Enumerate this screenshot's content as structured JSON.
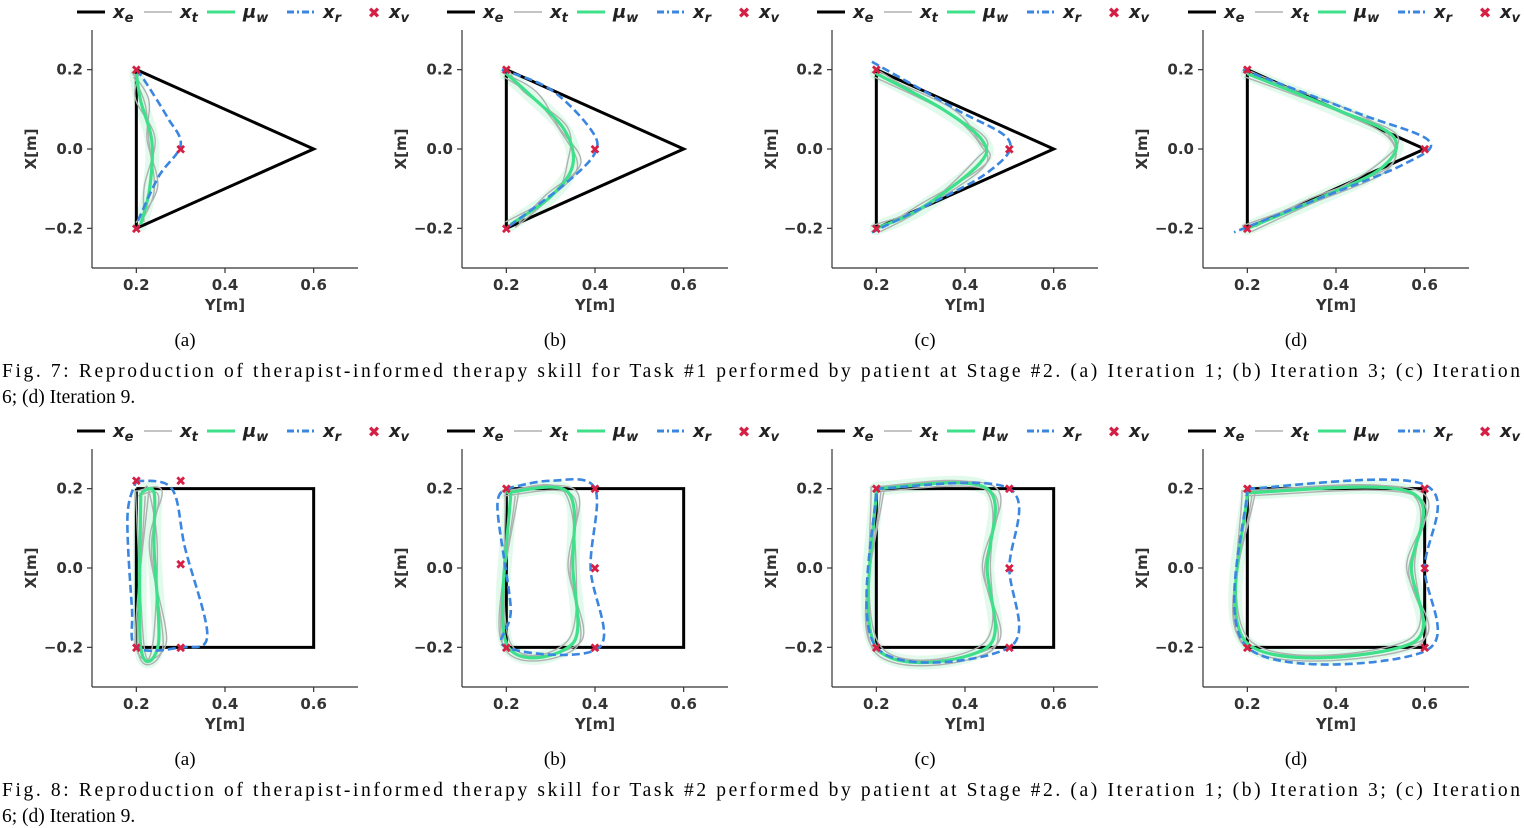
{
  "figures": [
    {
      "id": "fig7",
      "caption": "Fig. 7: Reproduction of therapist-informed therapy skill for Task #1 performed by patient at Stage #2. (a) Iteration 1; (b) Iteration 3; (c) Iteration 6; (d) Iteration 9.",
      "caption_line1": "Fig. 7: Reproduction of therapist-informed therapy skill for Task #1 performed by patient at Stage #2. (a) Iteration 1; (b) Iteration 3; (c) Iteration",
      "caption_line2": "6; (d) Iteration 9."
    },
    {
      "id": "fig8",
      "caption": "Fig. 8: Reproduction of therapist-informed therapy skill for Task #2 performed by patient at Stage #2. (a) Iteration 1; (b) Iteration 3; (c) Iteration 6; (d) Iteration 9.",
      "caption_line1": "Fig. 8: Reproduction of therapist-informed therapy skill for Task #2 performed by patient at Stage #2. (a) Iteration 1; (b) Iteration 3; (c) Iteration",
      "caption_line2": "6; (d) Iteration 9."
    }
  ],
  "legend": [
    {
      "name": "x",
      "sub": "e",
      "style": "solid",
      "color": "#000000"
    },
    {
      "name": "x",
      "sub": "t",
      "style": "thin",
      "color": "#b0b0b0"
    },
    {
      "name": "μ",
      "sub": "w",
      "style": "solid",
      "color": "#3ee08a"
    },
    {
      "name": "x",
      "sub": "r",
      "style": "dashdot",
      "color": "#3a86e0"
    },
    {
      "name": "x",
      "sub": "v",
      "style": "marker",
      "color": "#d61f45"
    }
  ],
  "colors": {
    "x_e": "#000000",
    "x_t": "#b0b0b0",
    "mu_w": "#3ee08a",
    "x_r": "#3a86e0",
    "x_v": "#d61f45",
    "band": "#c9f5dc"
  },
  "axes": {
    "xlabel": "Y[m]",
    "ylabel": "X[m]",
    "xlim": [
      0.1,
      0.7
    ],
    "ylim": [
      -0.3,
      0.3
    ],
    "xticks": [
      0.2,
      0.4,
      0.6
    ],
    "xtick_labels": [
      "0.2",
      "0.4",
      "0.6"
    ],
    "yticks": [
      0.2,
      0.0,
      -0.2
    ],
    "ytick_labels": [
      "0.2",
      "0.0",
      "−0.2"
    ]
  },
  "chart_data": [
    {
      "type": "line",
      "figure": "fig7",
      "label": "(a)",
      "x_e": [
        [
          0.2,
          0.2
        ],
        [
          0.6,
          0.0
        ],
        [
          0.2,
          -0.2
        ],
        [
          0.2,
          0.2
        ]
      ],
      "mu_w": [
        [
          0.2,
          0.19
        ],
        [
          0.21,
          0.12
        ],
        [
          0.235,
          0.02
        ],
        [
          0.23,
          -0.1
        ],
        [
          0.21,
          -0.19
        ]
      ],
      "x_r": [
        [
          0.2,
          0.2
        ],
        [
          0.22,
          0.17
        ],
        [
          0.27,
          0.08
        ],
        [
          0.3,
          0.01
        ],
        [
          0.25,
          -0.07
        ],
        [
          0.2,
          -0.19
        ]
      ],
      "x_v": [
        [
          0.2,
          0.2
        ],
        [
          0.3,
          0.0
        ],
        [
          0.2,
          -0.2
        ]
      ]
    },
    {
      "type": "line",
      "figure": "fig7",
      "label": "(b)",
      "x_e": [
        [
          0.2,
          0.2
        ],
        [
          0.6,
          0.0
        ],
        [
          0.2,
          -0.2
        ],
        [
          0.2,
          0.2
        ]
      ],
      "mu_w": [
        [
          0.2,
          0.19
        ],
        [
          0.25,
          0.14
        ],
        [
          0.33,
          0.05
        ],
        [
          0.35,
          -0.04
        ],
        [
          0.3,
          -0.12
        ],
        [
          0.21,
          -0.19
        ]
      ],
      "x_r": [
        [
          0.19,
          0.2
        ],
        [
          0.3,
          0.15
        ],
        [
          0.39,
          0.05
        ],
        [
          0.4,
          -0.01
        ],
        [
          0.33,
          -0.09
        ],
        [
          0.2,
          -0.2
        ]
      ],
      "x_v": [
        [
          0.2,
          0.2
        ],
        [
          0.4,
          0.0
        ],
        [
          0.2,
          -0.2
        ]
      ]
    },
    {
      "type": "line",
      "figure": "fig7",
      "label": "(c)",
      "x_e": [
        [
          0.2,
          0.2
        ],
        [
          0.6,
          0.0
        ],
        [
          0.2,
          -0.2
        ],
        [
          0.2,
          0.2
        ]
      ],
      "mu_w": [
        [
          0.2,
          0.19
        ],
        [
          0.35,
          0.1
        ],
        [
          0.44,
          0.02
        ],
        [
          0.43,
          -0.04
        ],
        [
          0.3,
          -0.15
        ],
        [
          0.2,
          -0.2
        ]
      ],
      "x_r": [
        [
          0.19,
          0.22
        ],
        [
          0.38,
          0.1
        ],
        [
          0.5,
          0.02
        ],
        [
          0.45,
          -0.06
        ],
        [
          0.3,
          -0.15
        ],
        [
          0.19,
          -0.21
        ]
      ],
      "x_v": [
        [
          0.2,
          0.2
        ],
        [
          0.5,
          0.0
        ],
        [
          0.2,
          -0.2
        ]
      ]
    },
    {
      "type": "line",
      "figure": "fig7",
      "label": "(d)",
      "x_e": [
        [
          0.2,
          0.2
        ],
        [
          0.6,
          0.0
        ],
        [
          0.2,
          -0.2
        ],
        [
          0.2,
          0.2
        ]
      ],
      "mu_w": [
        [
          0.2,
          0.19
        ],
        [
          0.4,
          0.1
        ],
        [
          0.53,
          0.03
        ],
        [
          0.5,
          -0.05
        ],
        [
          0.35,
          -0.13
        ],
        [
          0.2,
          -0.2
        ]
      ],
      "x_r": [
        [
          0.19,
          0.2
        ],
        [
          0.45,
          0.09
        ],
        [
          0.61,
          0.02
        ],
        [
          0.55,
          -0.04
        ],
        [
          0.35,
          -0.13
        ],
        [
          0.17,
          -0.21
        ]
      ],
      "x_v": [
        [
          0.2,
          0.2
        ],
        [
          0.6,
          0.0
        ],
        [
          0.2,
          -0.2
        ]
      ]
    },
    {
      "type": "line",
      "figure": "fig8",
      "label": "(a)",
      "x_e": [
        [
          0.2,
          0.2
        ],
        [
          0.6,
          0.2
        ],
        [
          0.6,
          -0.2
        ],
        [
          0.2,
          -0.2
        ],
        [
          0.2,
          0.2
        ]
      ],
      "mu_w": [
        [
          0.21,
          0.19
        ],
        [
          0.24,
          0.19
        ],
        [
          0.24,
          0.05
        ],
        [
          0.25,
          -0.19
        ],
        [
          0.21,
          -0.2
        ],
        [
          0.21,
          0.19
        ]
      ],
      "x_r": [
        [
          0.2,
          0.22
        ],
        [
          0.28,
          0.2
        ],
        [
          0.31,
          0.05
        ],
        [
          0.36,
          -0.17
        ],
        [
          0.3,
          -0.2
        ],
        [
          0.2,
          -0.2
        ],
        [
          0.19,
          -0.1
        ],
        [
          0.18,
          0.13
        ],
        [
          0.2,
          0.22
        ]
      ],
      "x_v": [
        [
          0.2,
          0.22
        ],
        [
          0.3,
          0.22
        ],
        [
          0.3,
          0.01
        ],
        [
          0.3,
          -0.2
        ],
        [
          0.2,
          -0.2
        ]
      ]
    },
    {
      "type": "line",
      "figure": "fig8",
      "label": "(b)",
      "x_e": [
        [
          0.2,
          0.2
        ],
        [
          0.6,
          0.2
        ],
        [
          0.6,
          -0.2
        ],
        [
          0.2,
          -0.2
        ],
        [
          0.2,
          0.2
        ]
      ],
      "mu_w": [
        [
          0.2,
          0.19
        ],
        [
          0.34,
          0.19
        ],
        [
          0.35,
          0.0
        ],
        [
          0.35,
          -0.19
        ],
        [
          0.2,
          -0.19
        ],
        [
          0.21,
          0.19
        ]
      ],
      "x_r": [
        [
          0.2,
          0.2
        ],
        [
          0.3,
          0.22
        ],
        [
          0.4,
          0.2
        ],
        [
          0.39,
          0.0
        ],
        [
          0.41,
          -0.2
        ],
        [
          0.2,
          -0.2
        ],
        [
          0.21,
          -0.1
        ],
        [
          0.18,
          0.15
        ],
        [
          0.2,
          0.2
        ]
      ],
      "x_v": [
        [
          0.2,
          0.2
        ],
        [
          0.4,
          0.2
        ],
        [
          0.4,
          0.0
        ],
        [
          0.4,
          -0.2
        ],
        [
          0.2,
          -0.2
        ]
      ]
    },
    {
      "type": "line",
      "figure": "fig8",
      "label": "(c)",
      "x_e": [
        [
          0.2,
          0.2
        ],
        [
          0.6,
          0.2
        ],
        [
          0.6,
          -0.2
        ],
        [
          0.2,
          -0.2
        ],
        [
          0.2,
          0.2
        ]
      ],
      "mu_w": [
        [
          0.2,
          0.2
        ],
        [
          0.45,
          0.2
        ],
        [
          0.45,
          0.0
        ],
        [
          0.45,
          -0.2
        ],
        [
          0.2,
          -0.2
        ],
        [
          0.2,
          0.2
        ]
      ],
      "x_r": [
        [
          0.2,
          0.2
        ],
        [
          0.5,
          0.2
        ],
        [
          0.5,
          0.0
        ],
        [
          0.5,
          -0.2
        ],
        [
          0.2,
          -0.2
        ],
        [
          0.2,
          0.2
        ]
      ],
      "x_v": [
        [
          0.2,
          0.2
        ],
        [
          0.5,
          0.2
        ],
        [
          0.5,
          0.0
        ],
        [
          0.5,
          -0.2
        ],
        [
          0.2,
          -0.2
        ]
      ]
    },
    {
      "type": "line",
      "figure": "fig8",
      "label": "(d)",
      "x_e": [
        [
          0.2,
          0.2
        ],
        [
          0.6,
          0.2
        ],
        [
          0.6,
          -0.2
        ],
        [
          0.2,
          -0.2
        ],
        [
          0.2,
          0.2
        ]
      ],
      "mu_w": [
        [
          0.2,
          0.19
        ],
        [
          0.57,
          0.19
        ],
        [
          0.57,
          0.0
        ],
        [
          0.57,
          -0.19
        ],
        [
          0.2,
          -0.19
        ],
        [
          0.2,
          0.19
        ]
      ],
      "x_r": [
        [
          0.2,
          0.2
        ],
        [
          0.6,
          0.21
        ],
        [
          0.6,
          0.0
        ],
        [
          0.6,
          -0.21
        ],
        [
          0.2,
          -0.2
        ],
        [
          0.2,
          0.2
        ]
      ],
      "x_v": [
        [
          0.2,
          0.2
        ],
        [
          0.6,
          0.2
        ],
        [
          0.6,
          0.0
        ],
        [
          0.6,
          -0.2
        ],
        [
          0.2,
          -0.2
        ]
      ]
    }
  ]
}
